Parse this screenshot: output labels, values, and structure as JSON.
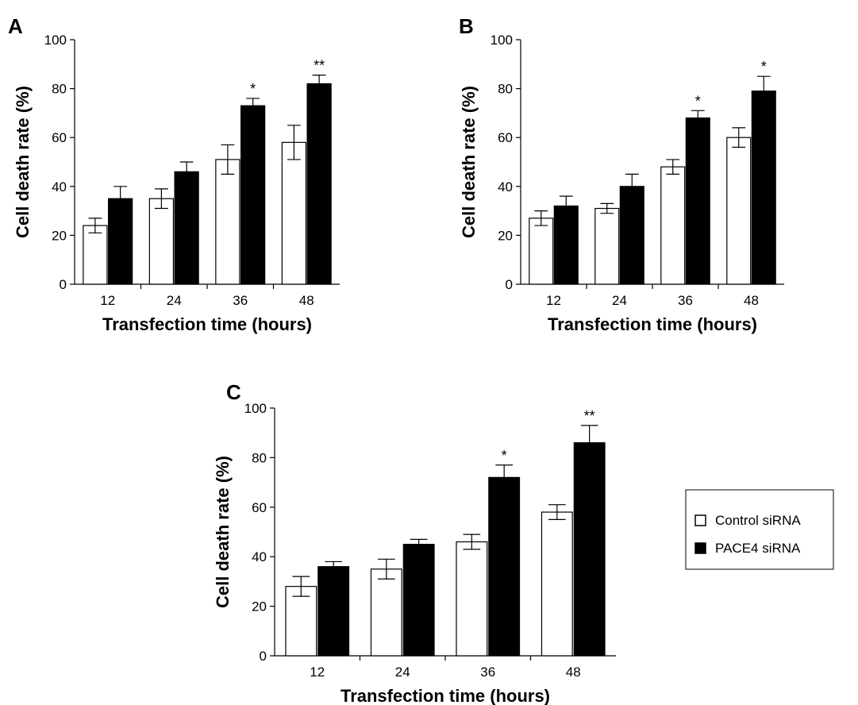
{
  "figure": {
    "legend": {
      "entries": [
        {
          "label": "Control siRNA",
          "fill": "#ffffff"
        },
        {
          "label": "PACE4 siRNA",
          "fill": "#000000"
        }
      ]
    }
  },
  "chart_data": [
    {
      "type": "bar",
      "panel": "A",
      "categories": [
        "12",
        "24",
        "36",
        "48"
      ],
      "series": [
        {
          "name": "Control siRNA",
          "values": [
            24,
            35,
            51,
            58
          ],
          "errors": [
            3,
            4,
            6,
            7
          ]
        },
        {
          "name": "PACE4 siRNA",
          "values": [
            35,
            46,
            73,
            82
          ],
          "errors": [
            5,
            4,
            3,
            3.5
          ]
        }
      ],
      "annotations": [
        "",
        "",
        "*",
        "**"
      ],
      "xlabel": "Transfection time (hours)",
      "ylabel": "Cell death rate (%)",
      "ylim": [
        0,
        100
      ],
      "yticks": [
        "0",
        "20",
        "40",
        "60",
        "80",
        "100"
      ],
      "grid": false
    },
    {
      "type": "bar",
      "panel": "B",
      "categories": [
        "12",
        "24",
        "36",
        "48"
      ],
      "series": [
        {
          "name": "Control siRNA",
          "values": [
            27,
            31,
            48,
            60
          ],
          "errors": [
            3,
            2,
            3,
            4
          ]
        },
        {
          "name": "PACE4 siRNA",
          "values": [
            32,
            40,
            68,
            79
          ],
          "errors": [
            4,
            5,
            3,
            6
          ]
        }
      ],
      "annotations": [
        "",
        "",
        "*",
        "*"
      ],
      "xlabel": "Transfection time (hours)",
      "ylabel": "Cell death rate (%)",
      "ylim": [
        0,
        100
      ],
      "yticks": [
        "0",
        "20",
        "40",
        "60",
        "80",
        "100"
      ],
      "grid": false
    },
    {
      "type": "bar",
      "panel": "C",
      "categories": [
        "12",
        "24",
        "36",
        "48"
      ],
      "series": [
        {
          "name": "Control siRNA",
          "values": [
            28,
            35,
            46,
            58
          ],
          "errors": [
            4,
            4,
            3,
            3
          ]
        },
        {
          "name": "PACE4 siRNA",
          "values": [
            36,
            45,
            72,
            86
          ],
          "errors": [
            2,
            2,
            5,
            7
          ]
        }
      ],
      "annotations": [
        "",
        "",
        "*",
        "**"
      ],
      "xlabel": "Transfection time (hours)",
      "ylabel": "Cell death rate (%)",
      "ylim": [
        0,
        100
      ],
      "yticks": [
        "0",
        "20",
        "40",
        "60",
        "80",
        "100"
      ],
      "grid": false
    }
  ]
}
